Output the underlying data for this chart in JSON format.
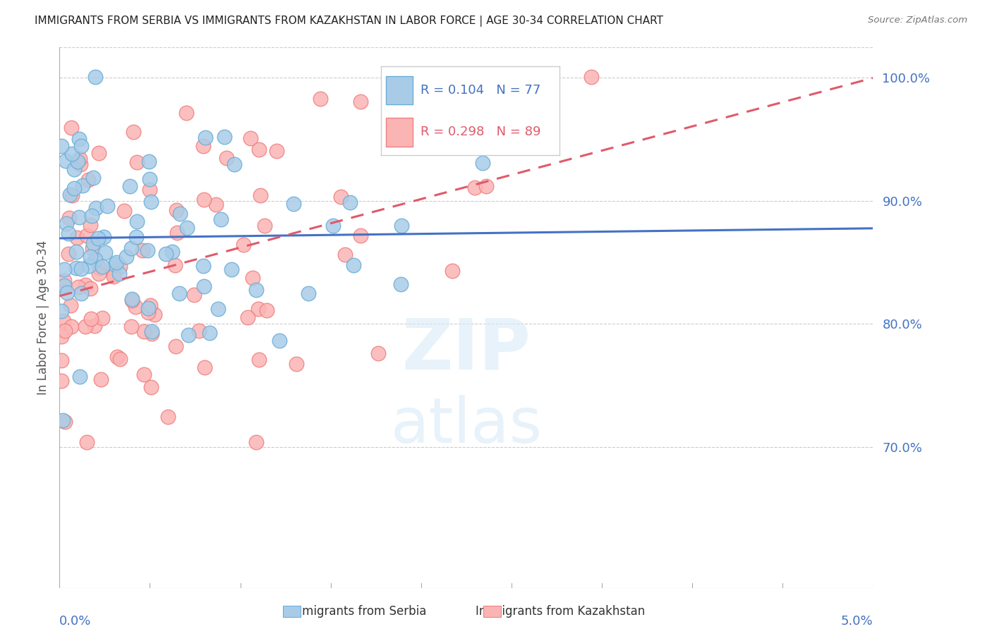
{
  "title": "IMMIGRANTS FROM SERBIA VS IMMIGRANTS FROM KAZAKHSTAN IN LABOR FORCE | AGE 30-34 CORRELATION CHART",
  "source": "Source: ZipAtlas.com",
  "ylabel": "In Labor Force | Age 30-34",
  "xlim": [
    0.0,
    0.05
  ],
  "ylim": [
    0.585,
    1.025
  ],
  "serbia_R": 0.104,
  "serbia_N": 77,
  "kazakhstan_R": 0.298,
  "kazakhstan_N": 89,
  "serbia_color": "#a8cce8",
  "serbia_edge_color": "#6baed6",
  "kazakhstan_color": "#fbb4b4",
  "kazakhstan_edge_color": "#f08080",
  "serbia_line_color": "#4472c4",
  "kazakhstan_line_color": "#e05a6a",
  "watermark_color": "#ddeeff",
  "background_color": "#ffffff",
  "grid_color": "#cccccc",
  "axis_color": "#4472c4",
  "title_color": "#222222",
  "legend_box_color": "#f0f0f0",
  "serbia_seed": 42,
  "kazakhstan_seed": 99
}
